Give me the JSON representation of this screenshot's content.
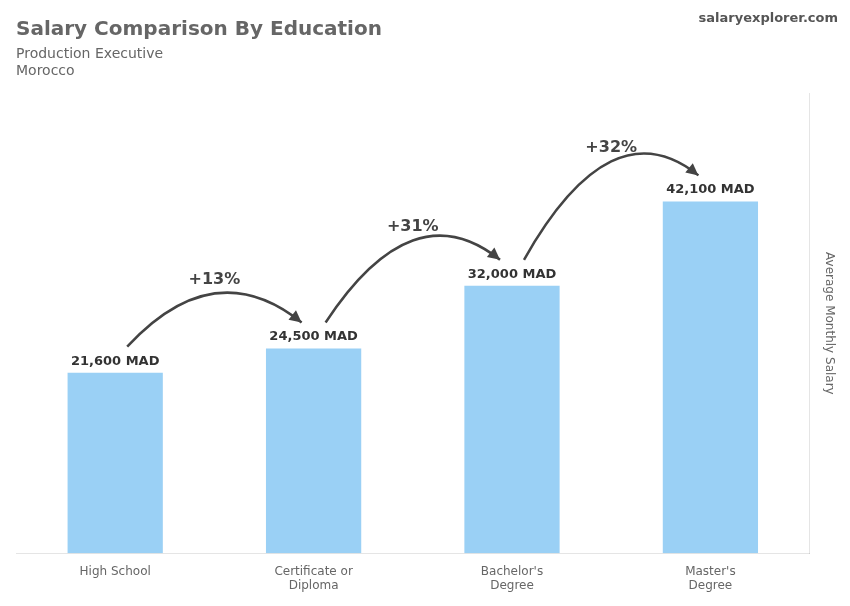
{
  "chart_data": {
    "type": "bar",
    "title": "Salary Comparison By Education",
    "subtitle": [
      "Production Executive",
      "Morocco"
    ],
    "y_label": "Average Monthly Salary",
    "categories": [
      "High School",
      "Certificate or\nDiploma",
      "Bachelor's\nDegree",
      "Master's\nDegree"
    ],
    "values": [
      21600,
      24500,
      32000,
      42100
    ],
    "value_labels": [
      "21,600 MAD",
      "24,500 MAD",
      "32,000 MAD",
      "42,100 MAD"
    ],
    "data_labels": true,
    "annotations": [
      {
        "text": "+13%",
        "from": 0,
        "to": 1
      },
      {
        "text": "+31%",
        "from": 1,
        "to": 2
      },
      {
        "text": "+32%",
        "from": 2,
        "to": 3
      },
      {
        "text": "salaryexplorer.com"
      }
    ],
    "ylim": [
      0,
      55000
    ],
    "yticks": [],
    "grid": false,
    "tick_labels": "x"
  }
}
